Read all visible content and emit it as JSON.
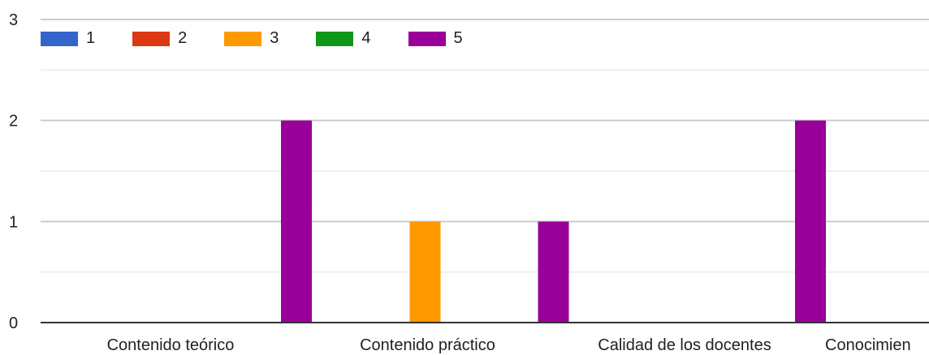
{
  "chart_data": {
    "type": "bar",
    "title": "",
    "xlabel": "",
    "ylabel": "",
    "ylim": [
      0,
      3
    ],
    "yticks": [
      0,
      1,
      2,
      3
    ],
    "minor_gridlines": true,
    "grid": true,
    "legend_position": "top-left",
    "categories": [
      "Contenido teórico",
      "Contenido práctico",
      "Calidad de los docentes",
      "Conocimien"
    ],
    "series": [
      {
        "name": "1",
        "color": "#3366cc",
        "values": [
          0,
          0,
          0,
          0
        ]
      },
      {
        "name": "2",
        "color": "#dc3912",
        "values": [
          0,
          0,
          0,
          0
        ]
      },
      {
        "name": "3",
        "color": "#ff9900",
        "values": [
          0,
          1,
          0,
          0
        ]
      },
      {
        "name": "4",
        "color": "#109618",
        "values": [
          0,
          0,
          0,
          0
        ]
      },
      {
        "name": "5",
        "color": "#990099",
        "values": [
          2,
          1,
          2,
          0
        ]
      }
    ]
  }
}
